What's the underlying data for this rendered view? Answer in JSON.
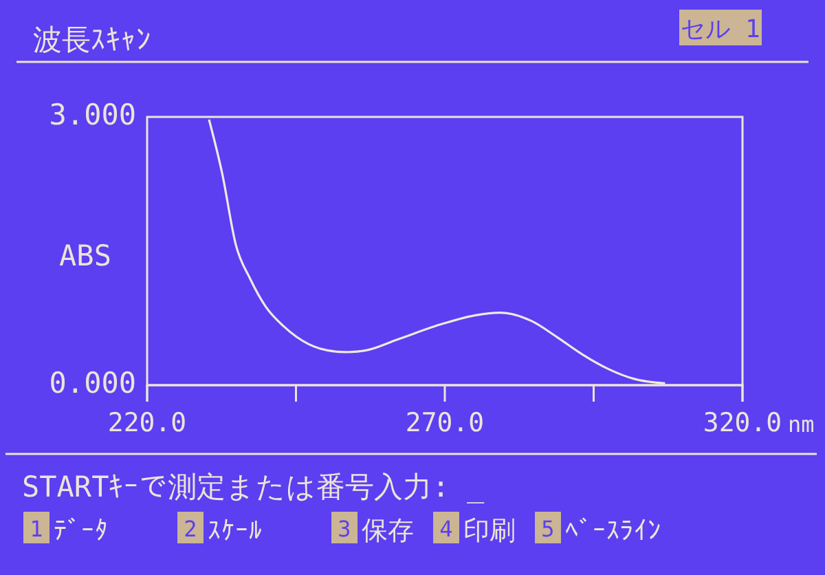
{
  "chart_data": {
    "type": "line",
    "title": "波長ｽｷｬﾝ",
    "xlabel": "nm",
    "ylabel": "ABS",
    "annotations": [
      "セル 1",
      "STARTｷｰで測定または番号入力: _",
      "1",
      "ﾃﾞｰﾀ",
      "2",
      "ｽｹｰﾙ",
      "3",
      "保存",
      "4",
      "印刷",
      "5",
      "ﾍﾞｰｽﾗｲﾝ"
    ],
    "x": [
      230.4,
      232.6,
      234.9,
      237.3,
      239.9,
      242.9,
      245.1,
      249.0,
      253.3,
      256.8,
      262.0,
      269.8,
      275.0,
      279.3,
      284.5,
      288.8,
      293.2,
      297.5,
      301.8,
      307.0
    ],
    "series": [
      {
        "color": "#f0e8e0",
        "values": [
          2.97,
          2.37,
          1.57,
          1.19,
          0.88,
          0.66,
          0.54,
          0.41,
          0.37,
          0.39,
          0.51,
          0.69,
          0.78,
          0.81,
          0.72,
          0.54,
          0.34,
          0.18,
          0.07,
          0.02
        ]
      }
    ],
    "xlim": [
      220,
      320
    ],
    "ylim": [
      0,
      3
    ],
    "xticks": [
      {
        "value": 220,
        "label": "220.0"
      },
      {
        "value": 245,
        "label": null
      },
      {
        "value": 270,
        "label": "270.0"
      },
      {
        "value": 295,
        "label": null
      },
      {
        "value": 320,
        "label": "320.0"
      }
    ],
    "yticks": [
      {
        "value": 0,
        "label": "0.000"
      },
      {
        "value": 3,
        "label": "3.000"
      }
    ],
    "marker": "none",
    "line_style": "solid"
  }
}
